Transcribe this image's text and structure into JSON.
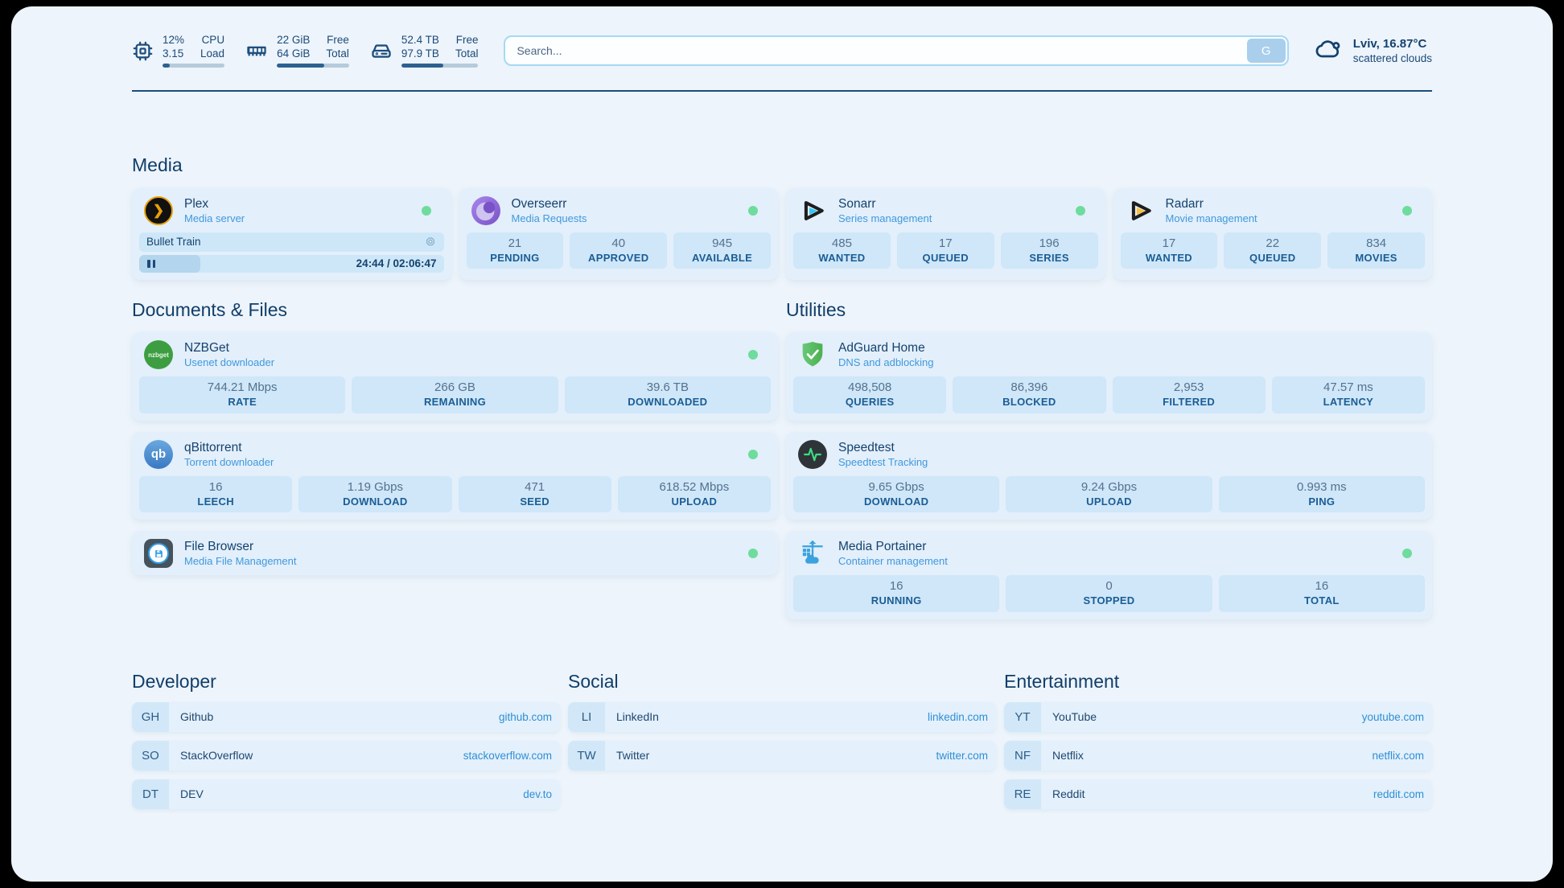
{
  "header": {
    "stats": [
      {
        "icon": "cpu-icon",
        "value_top": "12%",
        "value_bottom": "3.15",
        "label_top": "CPU",
        "label_bottom": "Load",
        "progress_percent": 12
      },
      {
        "icon": "ram-icon",
        "value_top": "22 GiB",
        "value_bottom": "64 GiB",
        "label_top": "Free",
        "label_bottom": "Total",
        "progress_percent": 66
      },
      {
        "icon": "disk-icon",
        "value_top": "52.4 TB",
        "value_bottom": "97.9 TB",
        "label_top": "Free",
        "label_bottom": "Total",
        "progress_percent": 54
      }
    ],
    "search": {
      "placeholder": "Search...",
      "button_label": "G"
    },
    "weather": {
      "icon": "cloud-icon",
      "location_temp": "Lviv, 16.87°C",
      "condition": "scattered clouds"
    }
  },
  "sections": {
    "media": {
      "title": "Media",
      "apps": [
        {
          "icon": "plex-icon",
          "name": "Plex",
          "subtitle": "Media server",
          "status": "online",
          "now_playing": {
            "title": "Bullet Train",
            "time_display": "24:44 / 02:06:47",
            "progress_percent": 20
          }
        },
        {
          "icon": "overseerr-icon",
          "name": "Overseerr",
          "subtitle": "Media Requests",
          "status": "online",
          "stats": [
            {
              "value": "21",
              "label": "PENDING"
            },
            {
              "value": "40",
              "label": "APPROVED"
            },
            {
              "value": "945",
              "label": "AVAILABLE"
            }
          ]
        },
        {
          "icon": "sonarr-icon",
          "name": "Sonarr",
          "subtitle": "Series management",
          "status": "online",
          "stats": [
            {
              "value": "485",
              "label": "WANTED"
            },
            {
              "value": "17",
              "label": "QUEUED"
            },
            {
              "value": "196",
              "label": "SERIES"
            }
          ]
        },
        {
          "icon": "radarr-icon",
          "name": "Radarr",
          "subtitle": "Movie management",
          "status": "online",
          "stats": [
            {
              "value": "17",
              "label": "WANTED"
            },
            {
              "value": "22",
              "label": "QUEUED"
            },
            {
              "value": "834",
              "label": "MOVIES"
            }
          ]
        }
      ]
    },
    "documents": {
      "title": "Documents & Files",
      "apps": [
        {
          "icon": "nzbget-icon",
          "abbr": "nzbget",
          "name": "NZBGet",
          "subtitle": "Usenet downloader",
          "status": "online",
          "stats": [
            {
              "value": "744.21 Mbps",
              "label": "RATE"
            },
            {
              "value": "266 GB",
              "label": "REMAINING"
            },
            {
              "value": "39.6 TB",
              "label": "DOWNLOADED"
            }
          ]
        },
        {
          "icon": "qbittorrent-icon",
          "abbr": "qb",
          "name": "qBittorrent",
          "subtitle": "Torrent downloader",
          "status": "online",
          "stats": [
            {
              "value": "16",
              "label": "LEECH"
            },
            {
              "value": "1.19 Gbps",
              "label": "DOWNLOAD"
            },
            {
              "value": "471",
              "label": "SEED"
            },
            {
              "value": "618.52 Mbps",
              "label": "UPLOAD"
            }
          ]
        },
        {
          "icon": "filebrowser-icon",
          "name": "File Browser",
          "subtitle": "Media File Management",
          "status": "online"
        }
      ]
    },
    "utilities": {
      "title": "Utilities",
      "apps": [
        {
          "icon": "adguard-icon",
          "name": "AdGuard Home",
          "subtitle": "DNS and adblocking",
          "stats": [
            {
              "value": "498,508",
              "label": "QUERIES"
            },
            {
              "value": "86,396",
              "label": "BLOCKED"
            },
            {
              "value": "2,953",
              "label": "FILTERED"
            },
            {
              "value": "47.57 ms",
              "label": "LATENCY"
            }
          ]
        },
        {
          "icon": "speedtest-icon",
          "name": "Speedtest",
          "subtitle": "Speedtest Tracking",
          "stats": [
            {
              "value": "9.65 Gbps",
              "label": "DOWNLOAD"
            },
            {
              "value": "9.24 Gbps",
              "label": "UPLOAD"
            },
            {
              "value": "0.993 ms",
              "label": "PING"
            }
          ]
        },
        {
          "icon": "portainer-icon",
          "name": "Media Portainer",
          "subtitle": "Container management",
          "status": "online",
          "stats": [
            {
              "value": "16",
              "label": "RUNNING"
            },
            {
              "value": "0",
              "label": "STOPPED"
            },
            {
              "value": "16",
              "label": "TOTAL"
            }
          ]
        }
      ]
    },
    "bookmarks": [
      {
        "title": "Developer",
        "links": [
          {
            "abbr": "GH",
            "name": "Github",
            "url": "github.com"
          },
          {
            "abbr": "SO",
            "name": "StackOverflow",
            "url": "stackoverflow.com"
          },
          {
            "abbr": "DT",
            "name": "DEV",
            "url": "dev.to"
          }
        ]
      },
      {
        "title": "Social",
        "links": [
          {
            "abbr": "LI",
            "name": "LinkedIn",
            "url": "linkedin.com"
          },
          {
            "abbr": "TW",
            "name": "Twitter",
            "url": "twitter.com"
          }
        ]
      },
      {
        "title": "Entertainment",
        "links": [
          {
            "abbr": "YT",
            "name": "YouTube",
            "url": "youtube.com"
          },
          {
            "abbr": "NF",
            "name": "Netflix",
            "url": "netflix.com"
          },
          {
            "abbr": "RE",
            "name": "Reddit",
            "url": "reddit.com"
          }
        ]
      }
    ]
  },
  "colors": {
    "accent": "#2e8fd6",
    "status_online": "#6edc9c",
    "navy": "#14426e",
    "panel_bg": "#edf4fb",
    "card_bg": "#e3effb",
    "stat_box_bg": "#cfe7f8"
  }
}
